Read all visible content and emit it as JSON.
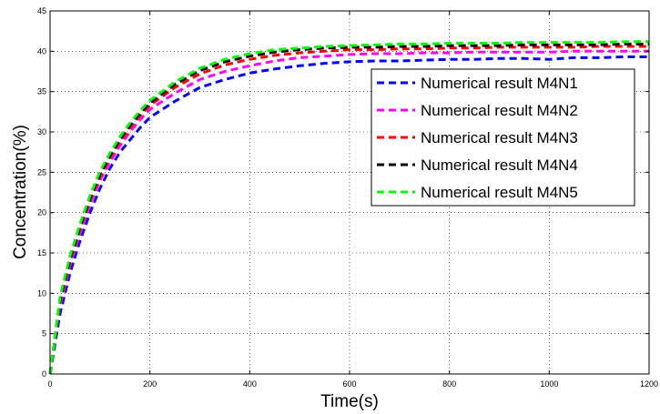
{
  "chart_data": {
    "type": "line",
    "title": "",
    "xlabel": "Time(s)",
    "ylabel": "Concentration(%)",
    "xlim": [
      0,
      1200
    ],
    "ylim": [
      0,
      45
    ],
    "xticks": [
      0,
      200,
      400,
      600,
      800,
      1000,
      1200
    ],
    "yticks": [
      0,
      5,
      10,
      15,
      20,
      25,
      30,
      35,
      40,
      45
    ],
    "grid": true,
    "legend_position": "right",
    "x": [
      0,
      20,
      40,
      60,
      80,
      100,
      120,
      140,
      160,
      180,
      200,
      250,
      300,
      350,
      400,
      450,
      500,
      550,
      600,
      650,
      700,
      750,
      800,
      850,
      900,
      950,
      1000,
      1050,
      1100,
      1150,
      1200
    ],
    "series": [
      {
        "name": "Numerical result M4N1",
        "color": "#0000ff",
        "values": [
          0,
          7.5,
          12.5,
          16.5,
          20,
          23,
          25.5,
          27.5,
          29,
          30.5,
          31.8,
          33.8,
          35.5,
          36.5,
          37.3,
          37.8,
          38.2,
          38.5,
          38.7,
          38.8,
          38.8,
          38.9,
          39.0,
          39.0,
          39.1,
          39.1,
          39.0,
          39.2,
          39.2,
          39.3,
          39.3
        ]
      },
      {
        "name": "Numerical result M4N2",
        "color": "#ff00ff",
        "values": [
          0,
          8.5,
          13.5,
          17.5,
          21,
          24,
          26.3,
          28.3,
          30,
          31.5,
          32.8,
          34.8,
          36.5,
          37.5,
          38.2,
          38.8,
          39.2,
          39.4,
          39.6,
          39.7,
          39.7,
          39.8,
          39.8,
          39.9,
          39.9,
          39.9,
          39.9,
          40.0,
          40.0,
          40.0,
          40.0
        ]
      },
      {
        "name": "Numerical result M4N3",
        "color": "#ff0000",
        "values": [
          0,
          9.0,
          14.0,
          18.0,
          21.5,
          24.5,
          26.8,
          28.8,
          30.5,
          32.0,
          33.3,
          35.5,
          37.2,
          38.3,
          39.0,
          39.5,
          39.8,
          40.0,
          40.2,
          40.2,
          40.3,
          40.3,
          40.4,
          40.4,
          40.5,
          40.5,
          40.5,
          40.5,
          40.6,
          40.6,
          40.6
        ]
      },
      {
        "name": "Numerical result M4N4",
        "color": "#000000",
        "values": [
          0,
          9.3,
          14.3,
          18.3,
          21.8,
          24.8,
          27.1,
          29.1,
          30.8,
          32.3,
          33.6,
          35.9,
          37.6,
          38.7,
          39.4,
          39.9,
          40.2,
          40.4,
          40.5,
          40.5,
          40.6,
          40.6,
          40.7,
          40.7,
          40.7,
          40.8,
          40.8,
          40.8,
          40.8,
          40.9,
          40.9
        ]
      },
      {
        "name": "Numerical result M4N5",
        "color": "#00ff00",
        "values": [
          0,
          9.6,
          14.6,
          18.6,
          22.1,
          25.1,
          27.4,
          29.4,
          31.1,
          32.6,
          33.9,
          36.2,
          37.9,
          39.0,
          39.7,
          40.2,
          40.4,
          40.6,
          40.7,
          40.8,
          40.9,
          40.9,
          41.0,
          41.0,
          41.0,
          41.1,
          41.1,
          41.1,
          41.1,
          41.2,
          41.2
        ]
      }
    ]
  }
}
